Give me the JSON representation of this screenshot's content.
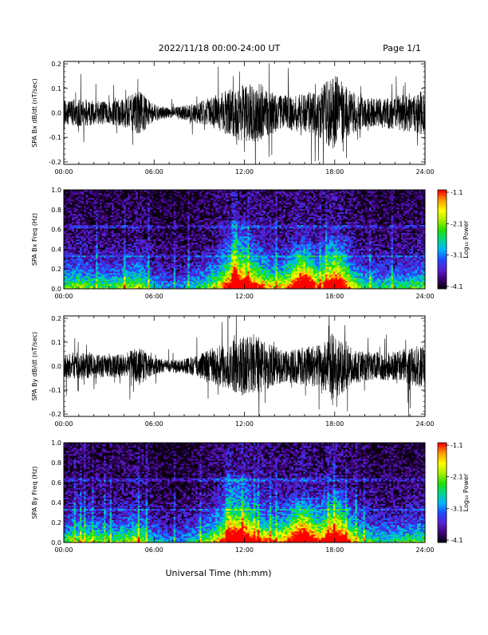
{
  "header": {
    "title": "2022/11/18  00:00-24:00 UT",
    "page_label": "Page 1/1"
  },
  "footer": {
    "xlabel": "Universal Time (hh:mm)"
  },
  "colorbar": {
    "label": "Log₁₀ Power",
    "ticks": [
      "-1.1",
      "-2.1",
      "-3.1",
      "-4.1"
    ],
    "range": [
      -4.1,
      -1.1
    ],
    "colors": [
      "#000000",
      "#3a006e",
      "#5a1fd0",
      "#2346ff",
      "#00b4ff",
      "#00d890",
      "#20e000",
      "#a8f000",
      "#ffff00",
      "#ffa000",
      "#ff0000"
    ]
  },
  "chart_data": [
    {
      "type": "line",
      "ylabel": "SPA Bx dB/dt (nT/sec)",
      "x_ticks": [
        "00:00",
        "06:00",
        "12:00",
        "18:00",
        "24:00"
      ],
      "xlim": [
        0,
        24
      ],
      "ylim": [
        -0.21,
        0.21
      ],
      "y_ticks": [
        "0.2",
        "0.1",
        "0.0",
        "-0.1",
        "-0.2"
      ],
      "y_tick_values": [
        0.2,
        0.1,
        0.0,
        -0.1,
        -0.2
      ],
      "line_color": "#000000",
      "envelope": {
        "hours": [
          0,
          1,
          2,
          3,
          4,
          5,
          6,
          7,
          8,
          9,
          10,
          11,
          12,
          13,
          14,
          15,
          16,
          17,
          18,
          19,
          20,
          21,
          22,
          23,
          24
        ],
        "amplitude": [
          0.05,
          0.06,
          0.05,
          0.045,
          0.06,
          0.09,
          0.035,
          0.02,
          0.03,
          0.045,
          0.07,
          0.1,
          0.12,
          0.12,
          0.08,
          0.07,
          0.08,
          0.1,
          0.16,
          0.09,
          0.06,
          0.06,
          0.07,
          0.08,
          0.09
        ]
      }
    },
    {
      "type": "heatmap",
      "ylabel": "SPA Bx Freq (Hz)",
      "x_ticks": [
        "00:00",
        "06:00",
        "12:00",
        "18:00",
        "24:00"
      ],
      "xlim": [
        0,
        24
      ],
      "ylim": [
        0,
        1.0
      ],
      "y_ticks": [
        "1.0",
        "0.8",
        "0.6",
        "0.4",
        "0.2",
        "0.0"
      ],
      "y_tick_values": [
        1.0,
        0.8,
        0.6,
        0.4,
        0.2,
        0.0
      ],
      "activity": {
        "hours": [
          0,
          1,
          2,
          3,
          4,
          5,
          6,
          7,
          8,
          9,
          10,
          11,
          12,
          13,
          14,
          15,
          16,
          17,
          18,
          19,
          20,
          21,
          22,
          23,
          24
        ],
        "level": [
          0.45,
          0.55,
          0.45,
          0.45,
          0.5,
          0.6,
          0.35,
          0.25,
          0.3,
          0.4,
          0.55,
          0.75,
          0.8,
          0.8,
          0.6,
          0.65,
          0.9,
          0.6,
          0.85,
          0.6,
          0.45,
          0.4,
          0.4,
          0.45,
          0.5
        ]
      },
      "bursts": [
        {
          "hour": 15.8,
          "top_hz": 0.45
        },
        {
          "hour": 18.1,
          "top_hz": 0.55
        },
        {
          "hour": 11.6,
          "top_hz": 0.7
        }
      ],
      "lines_hz": [
        0.63,
        0.33
      ]
    },
    {
      "type": "line",
      "ylabel": "SPA By dB/dt (nT/sec)",
      "x_ticks": [
        "00:00",
        "06:00",
        "12:00",
        "18:00",
        "24:00"
      ],
      "xlim": [
        0,
        24
      ],
      "ylim": [
        -0.21,
        0.21
      ],
      "y_ticks": [
        "0.2",
        "0.1",
        "0.0",
        "-0.1",
        "-0.2"
      ],
      "y_tick_values": [
        0.2,
        0.1,
        0.0,
        -0.1,
        -0.2
      ],
      "line_color": "#000000",
      "envelope": {
        "hours": [
          0,
          1,
          2,
          3,
          4,
          5,
          6,
          7,
          8,
          9,
          10,
          11,
          12,
          13,
          14,
          15,
          16,
          17,
          18,
          19,
          20,
          21,
          22,
          23,
          24
        ],
        "amplitude": [
          0.05,
          0.06,
          0.05,
          0.045,
          0.055,
          0.08,
          0.035,
          0.025,
          0.03,
          0.05,
          0.08,
          0.1,
          0.13,
          0.12,
          0.08,
          0.07,
          0.08,
          0.09,
          0.15,
          0.08,
          0.06,
          0.06,
          0.06,
          0.08,
          0.09
        ]
      }
    },
    {
      "type": "heatmap",
      "ylabel": "SPA By Freq (Hz)",
      "x_ticks": [
        "00:00",
        "06:00",
        "12:00",
        "18:00",
        "24:00"
      ],
      "xlim": [
        0,
        24
      ],
      "ylim": [
        0,
        1.0
      ],
      "y_ticks": [
        "1.0",
        "0.8",
        "0.6",
        "0.4",
        "0.2",
        "0.0"
      ],
      "y_tick_values": [
        1.0,
        0.8,
        0.6,
        0.4,
        0.2,
        0.0
      ],
      "activity": {
        "hours": [
          0,
          1,
          2,
          3,
          4,
          5,
          6,
          7,
          8,
          9,
          10,
          11,
          12,
          13,
          14,
          15,
          16,
          17,
          18,
          19,
          20,
          21,
          22,
          23,
          24
        ],
        "level": [
          0.45,
          0.55,
          0.5,
          0.45,
          0.5,
          0.6,
          0.35,
          0.25,
          0.3,
          0.4,
          0.6,
          0.75,
          0.85,
          0.8,
          0.65,
          0.7,
          0.9,
          0.65,
          0.85,
          0.6,
          0.45,
          0.4,
          0.4,
          0.45,
          0.5
        ]
      },
      "bursts": [
        {
          "hour": 15.8,
          "top_hz": 0.45
        },
        {
          "hour": 18.1,
          "top_hz": 0.55
        },
        {
          "hour": 11.6,
          "top_hz": 0.7
        }
      ],
      "lines_hz": [
        0.63,
        0.33
      ]
    }
  ]
}
